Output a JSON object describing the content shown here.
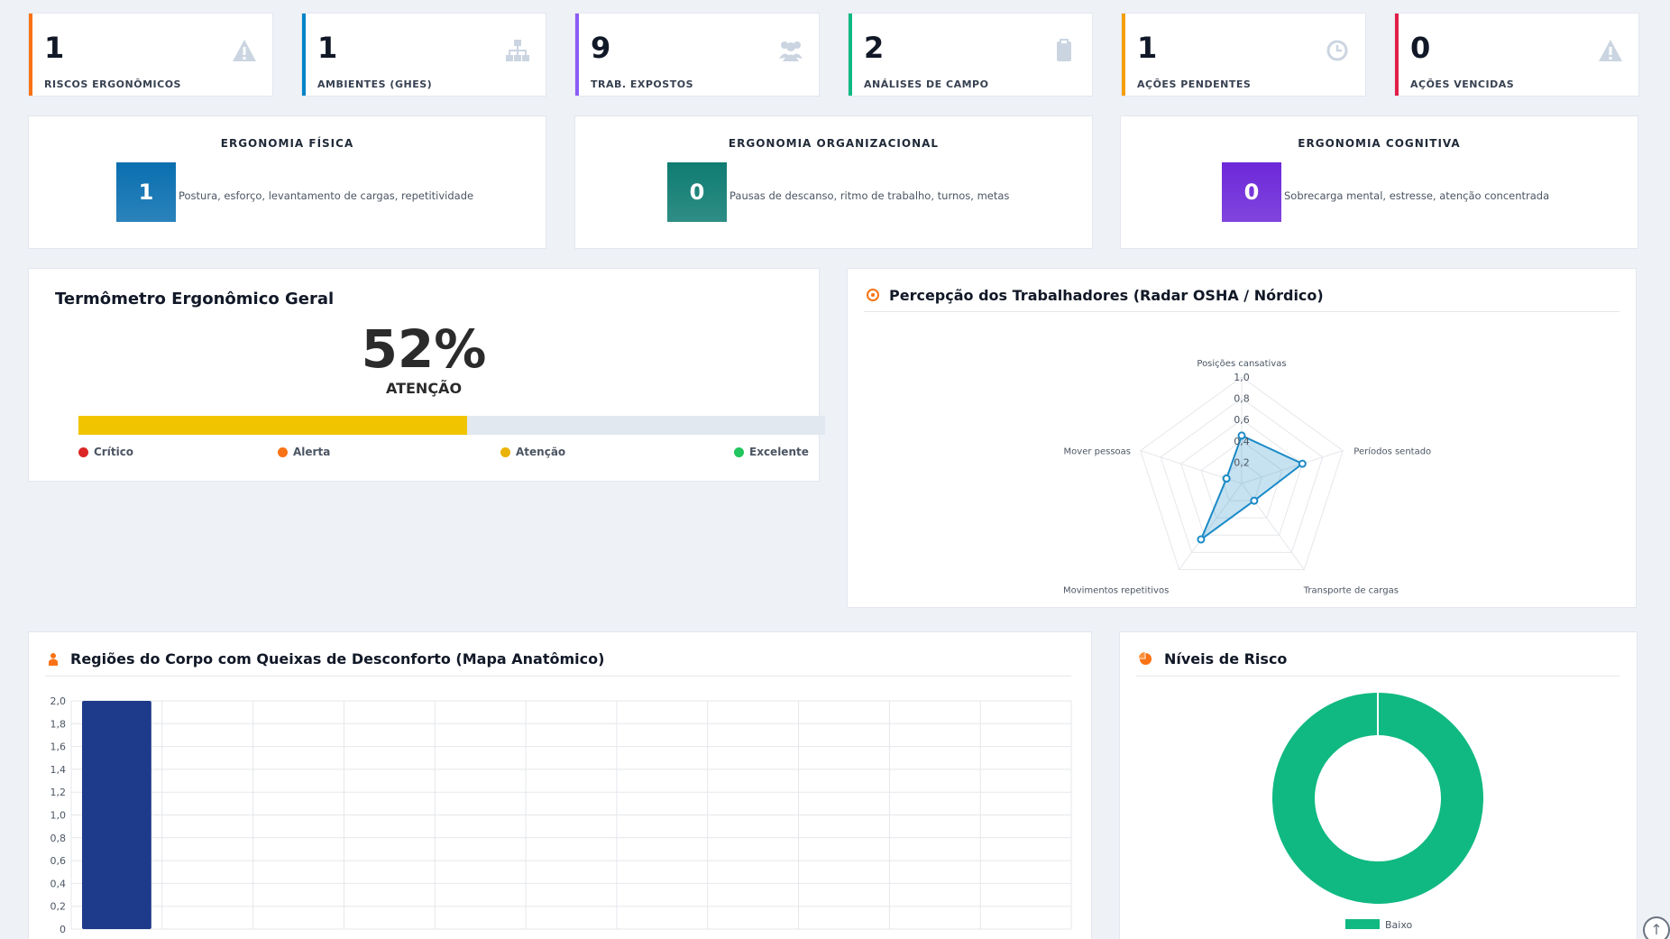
{
  "stats": [
    {
      "value": "1",
      "label": "RISCOS ERGONÔMICOS",
      "color": "#f97316",
      "icon": "warning-icon"
    },
    {
      "value": "1",
      "label": "AMBIENTES (GHES)",
      "color": "#0284c7",
      "icon": "sitemap-icon"
    },
    {
      "value": "9",
      "label": "TRAB. EXPOSTOS",
      "color": "#8b5cf6",
      "icon": "users-icon"
    },
    {
      "value": "2",
      "label": "ANÁLISES DE CAMPO",
      "color": "#10b981",
      "icon": "clipboard-icon"
    },
    {
      "value": "1",
      "label": "AÇÕES PENDENTES",
      "color": "#f59e0b",
      "icon": "clock-icon"
    },
    {
      "value": "0",
      "label": "AÇÕES VENCIDAS",
      "color": "#e11d48",
      "icon": "warning-icon"
    }
  ],
  "ergonomia": [
    {
      "title": "ERGONOMIA FÍSICA",
      "value": "1",
      "desc": "Postura, esforço, levantamento de cargas, repetitividade",
      "color": "#0a6fb0"
    },
    {
      "title": "ERGONOMIA ORGANIZACIONAL",
      "value": "0",
      "desc": "Pausas de descanso, ritmo de trabalho, turnos, metas",
      "color": "#0f7c72"
    },
    {
      "title": "ERGONOMIA COGNITIVA",
      "value": "0",
      "desc": "Sobrecarga mental, estresse, atenção concentrada",
      "color": "#6d28d9"
    }
  ],
  "thermometer": {
    "title": "Termômetro Ergonômico Geral",
    "percent_label": "52%",
    "percent": 52,
    "status": "ATENÇÃO",
    "legend": [
      {
        "label": "Crítico",
        "color": "#dc2626"
      },
      {
        "label": "Alerta",
        "color": "#f97316"
      },
      {
        "label": "Atenção",
        "color": "#eab308"
      },
      {
        "label": "Excelente",
        "color": "#22c55e"
      }
    ]
  },
  "radar": {
    "title": "Percepção dos Trabalhadores (Radar OSHA / Nórdico)"
  },
  "body_map": {
    "title": "Regiões do Corpo com Queixas de Desconforto (Mapa Anatômico)"
  },
  "risk_levels": {
    "title": "Níveis de Risco"
  },
  "chart_data": [
    {
      "type": "radar",
      "categories": [
        "Posições cansativas",
        "Períodos sentado",
        "Transporte de cargas",
        "Movimentos repetitivos",
        "Mover pessoas"
      ],
      "values": [
        0.45,
        0.6,
        0.2,
        0.65,
        0.15
      ],
      "ticks": [
        "0,2",
        "0,4",
        "0,6",
        "0,8",
        "1,0"
      ],
      "rlim": [
        0,
        1.0
      ],
      "color": "#1a8ac6"
    },
    {
      "type": "bar",
      "categories": [
        "",
        "",
        "",
        "",
        "",
        "",
        "",
        "",
        "",
        "",
        ""
      ],
      "values": [
        2,
        0,
        0,
        0,
        0,
        0,
        0,
        0,
        0,
        0,
        0
      ],
      "yticks": [
        "0",
        "0,2",
        "0,4",
        "0,6",
        "0,8",
        "1,0",
        "1,2",
        "1,4",
        "1,6",
        "1,8",
        "2,0"
      ],
      "ylim": [
        0,
        2.0
      ],
      "color": "#1e3a8a"
    },
    {
      "type": "pie",
      "categories": [
        "Baixo"
      ],
      "values": [
        1
      ],
      "colors": [
        "#10b981"
      ]
    }
  ]
}
